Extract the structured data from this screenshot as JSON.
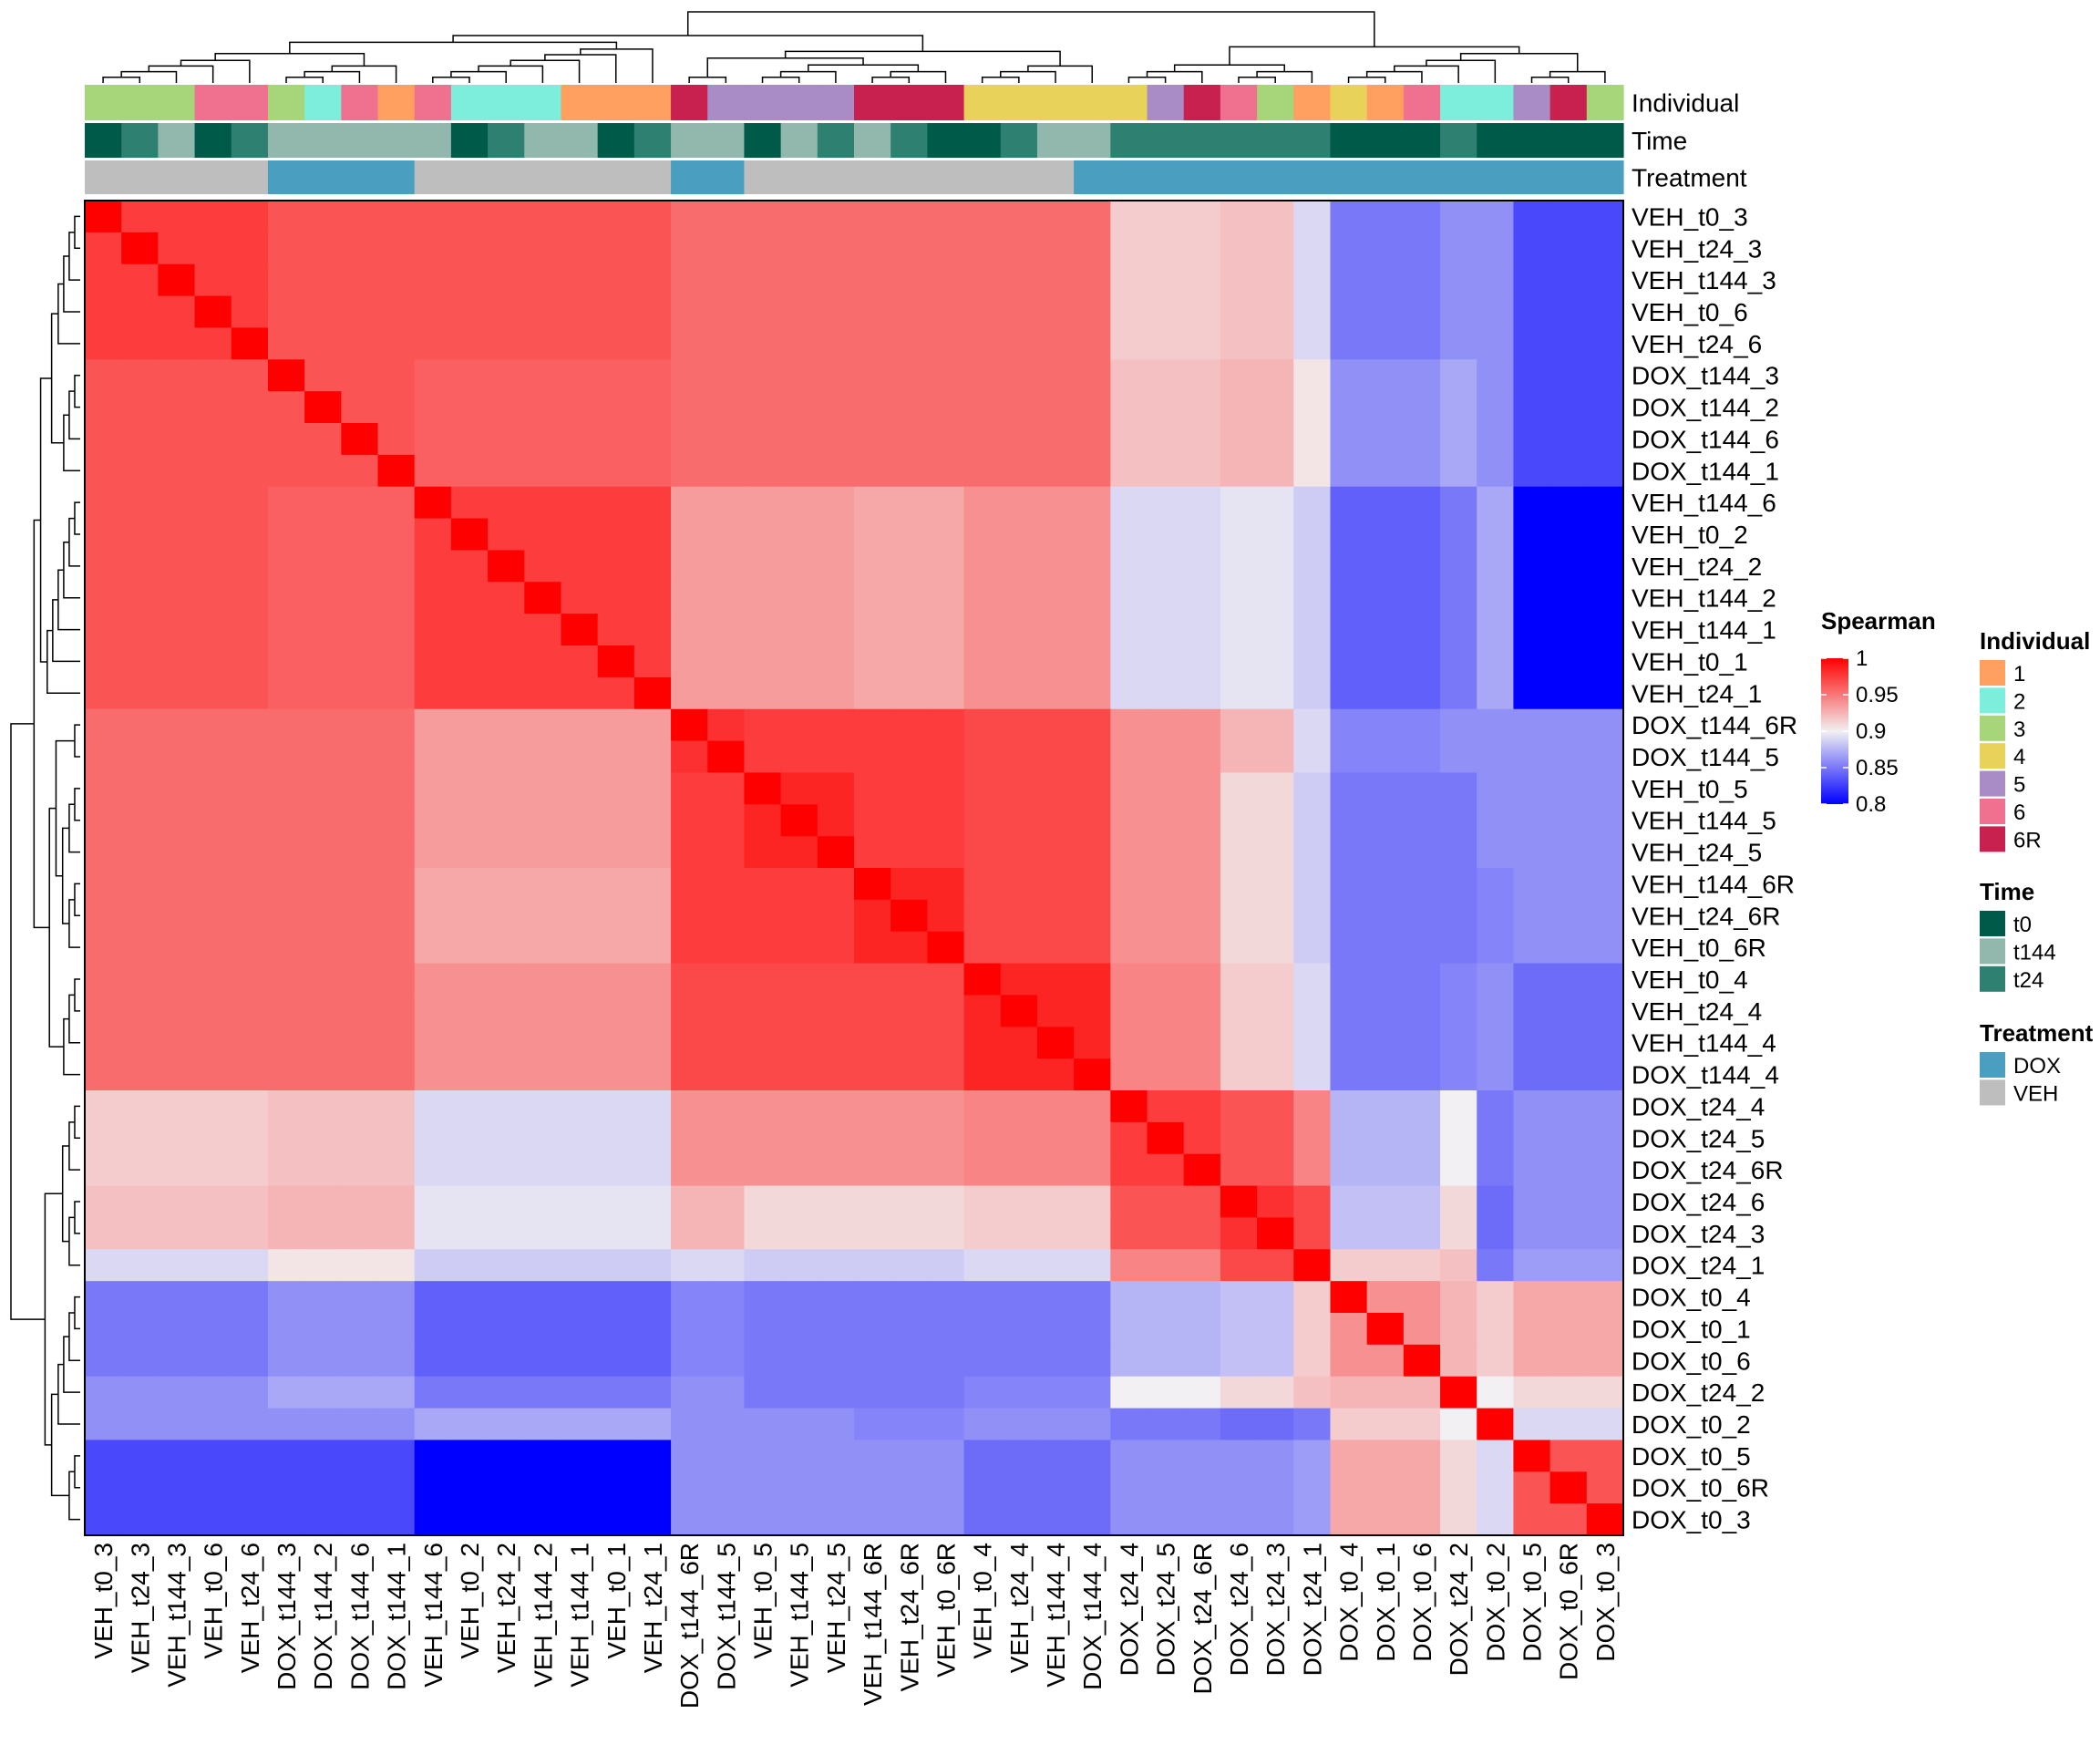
{
  "chart_data": {
    "type": "heatmap",
    "title": "",
    "samples": [
      "VEH_t0_3",
      "VEH_t24_3",
      "VEH_t144_3",
      "VEH_t0_6",
      "VEH_t24_6",
      "DOX_t144_3",
      "DOX_t144_2",
      "DOX_t144_6",
      "DOX_t144_1",
      "VEH_t144_6",
      "VEH_t0_2",
      "VEH_t24_2",
      "VEH_t144_2",
      "VEH_t144_1",
      "VEH_t0_1",
      "VEH_t24_1",
      "DOX_t144_6R",
      "DOX_t144_5",
      "VEH_t0_5",
      "VEH_t144_5",
      "VEH_t24_5",
      "VEH_t144_6R",
      "VEH_t24_6R",
      "VEH_t0_6R",
      "VEH_t0_4",
      "VEH_t24_4",
      "VEH_t144_4",
      "DOX_t144_4",
      "DOX_t24_4",
      "DOX_t24_5",
      "DOX_t24_6R",
      "DOX_t24_6",
      "DOX_t24_3",
      "DOX_t24_1",
      "DOX_t0_4",
      "DOX_t0_1",
      "DOX_t0_6",
      "DOX_t24_2",
      "DOX_t0_2",
      "DOX_t0_5",
      "DOX_t0_6R",
      "DOX_t0_3"
    ],
    "annotation_labels": [
      "Individual",
      "Time",
      "Treatment"
    ],
    "annotations": {
      "Individual": [
        "3",
        "3",
        "3",
        "6",
        "6",
        "3",
        "2",
        "6",
        "1",
        "6",
        "2",
        "2",
        "2",
        "1",
        "1",
        "1",
        "6R",
        "5",
        "5",
        "5",
        "5",
        "6R",
        "6R",
        "6R",
        "4",
        "4",
        "4",
        "4",
        "4",
        "5",
        "6R",
        "6",
        "3",
        "1",
        "4",
        "1",
        "6",
        "2",
        "2",
        "5",
        "6R",
        "3"
      ],
      "Time": [
        "t0",
        "t24",
        "t144",
        "t0",
        "t24",
        "t144",
        "t144",
        "t144",
        "t144",
        "t144",
        "t0",
        "t24",
        "t144",
        "t144",
        "t0",
        "t24",
        "t144",
        "t144",
        "t0",
        "t144",
        "t24",
        "t144",
        "t24",
        "t0",
        "t0",
        "t24",
        "t144",
        "t144",
        "t24",
        "t24",
        "t24",
        "t24",
        "t24",
        "t24",
        "t0",
        "t0",
        "t0",
        "t24",
        "t0",
        "t0",
        "t0",
        "t0"
      ],
      "Treatment": [
        "VEH",
        "VEH",
        "VEH",
        "VEH",
        "VEH",
        "DOX",
        "DOX",
        "DOX",
        "DOX",
        "VEH",
        "VEH",
        "VEH",
        "VEH",
        "VEH",
        "VEH",
        "VEH",
        "DOX",
        "DOX",
        "VEH",
        "VEH",
        "VEH",
        "VEH",
        "VEH",
        "VEH",
        "VEH",
        "VEH",
        "VEH",
        "DOX",
        "DOX",
        "DOX",
        "DOX",
        "DOX",
        "DOX",
        "DOX",
        "DOX",
        "DOX",
        "DOX",
        "DOX",
        "DOX",
        "DOX",
        "DOX",
        "DOX"
      ]
    },
    "value_groups_of_samples": [
      0,
      0,
      0,
      0,
      0,
      1,
      1,
      1,
      1,
      2,
      2,
      2,
      2,
      2,
      2,
      2,
      3,
      3,
      4,
      4,
      4,
      5,
      5,
      5,
      6,
      6,
      6,
      6,
      7,
      7,
      7,
      8,
      8,
      9,
      10,
      10,
      10,
      11,
      12,
      13,
      13,
      13
    ],
    "group_correlation_matrix": [
      [
        0.975,
        0.965,
        0.965,
        0.955,
        0.955,
        0.955,
        0.955,
        0.915,
        0.92,
        0.89,
        0.85,
        0.86,
        0.86,
        0.83
      ],
      [
        0.965,
        0.965,
        0.96,
        0.955,
        0.955,
        0.955,
        0.955,
        0.92,
        0.925,
        0.905,
        0.86,
        0.87,
        0.86,
        0.83
      ],
      [
        0.965,
        0.96,
        0.975,
        0.935,
        0.935,
        0.93,
        0.94,
        0.89,
        0.895,
        0.885,
        0.84,
        0.85,
        0.87,
        0.8
      ],
      [
        0.955,
        0.955,
        0.935,
        0.98,
        0.975,
        0.975,
        0.97,
        0.94,
        0.925,
        0.89,
        0.855,
        0.86,
        0.86,
        0.86
      ],
      [
        0.955,
        0.955,
        0.935,
        0.975,
        0.985,
        0.975,
        0.97,
        0.94,
        0.91,
        0.885,
        0.85,
        0.85,
        0.86,
        0.86
      ],
      [
        0.955,
        0.955,
        0.93,
        0.975,
        0.975,
        0.985,
        0.97,
        0.94,
        0.91,
        0.885,
        0.85,
        0.85,
        0.855,
        0.86
      ],
      [
        0.955,
        0.955,
        0.94,
        0.97,
        0.97,
        0.97,
        0.985,
        0.945,
        0.915,
        0.89,
        0.85,
        0.855,
        0.86,
        0.845
      ],
      [
        0.915,
        0.92,
        0.89,
        0.94,
        0.94,
        0.94,
        0.945,
        0.975,
        0.965,
        0.945,
        0.875,
        0.9,
        0.85,
        0.86
      ],
      [
        0.92,
        0.925,
        0.895,
        0.925,
        0.91,
        0.91,
        0.915,
        0.965,
        0.98,
        0.97,
        0.88,
        0.91,
        0.845,
        0.86
      ],
      [
        0.89,
        0.905,
        0.885,
        0.89,
        0.885,
        0.885,
        0.89,
        0.945,
        0.97,
        1.0,
        0.915,
        0.92,
        0.85,
        0.865
      ],
      [
        0.85,
        0.86,
        0.84,
        0.855,
        0.85,
        0.85,
        0.85,
        0.875,
        0.88,
        0.915,
        0.94,
        0.925,
        0.915,
        0.93
      ],
      [
        0.86,
        0.87,
        0.85,
        0.86,
        0.85,
        0.85,
        0.855,
        0.9,
        0.91,
        0.92,
        0.925,
        1.0,
        0.9,
        0.91
      ],
      [
        0.86,
        0.86,
        0.87,
        0.86,
        0.86,
        0.855,
        0.86,
        0.85,
        0.845,
        0.85,
        0.915,
        0.9,
        1.0,
        0.89
      ],
      [
        0.83,
        0.83,
        0.8,
        0.86,
        0.86,
        0.86,
        0.845,
        0.86,
        0.86,
        0.865,
        0.93,
        0.91,
        0.89,
        0.965
      ]
    ],
    "diagonal": 1,
    "color_scale": {
      "title": "Spearman",
      "min": 0.8,
      "mid": 0.9,
      "max": 1.0,
      "colors": [
        "#0000FF",
        "#F2F0F2",
        "#FF0000"
      ],
      "ticks": [
        {
          "value": 1,
          "label": "1"
        },
        {
          "value": 0.95,
          "label": "0.95"
        },
        {
          "value": 0.9,
          "label": "0.9"
        },
        {
          "value": 0.85,
          "label": "0.85"
        },
        {
          "value": 0.8,
          "label": "0.8"
        }
      ]
    },
    "legends": [
      {
        "title": "Individual",
        "items": [
          {
            "label": "1",
            "color": "#FFA060"
          },
          {
            "label": "2",
            "color": "#7DEEDC"
          },
          {
            "label": "3",
            "color": "#A6D57A"
          },
          {
            "label": "4",
            "color": "#E8D25A"
          },
          {
            "label": "5",
            "color": "#A98BC6"
          },
          {
            "label": "6",
            "color": "#F07090"
          },
          {
            "label": "6R",
            "color": "#C8204F"
          }
        ]
      },
      {
        "title": "Time",
        "items": [
          {
            "label": "t0",
            "color": "#005A4A"
          },
          {
            "label": "t144",
            "color": "#92B8AE"
          },
          {
            "label": "t24",
            "color": "#2E8070"
          }
        ]
      },
      {
        "title": "Treatment",
        "items": [
          {
            "label": "DOX",
            "color": "#4A9FC0"
          },
          {
            "label": "VEH",
            "color": "#BEBEBE"
          }
        ]
      }
    ]
  }
}
